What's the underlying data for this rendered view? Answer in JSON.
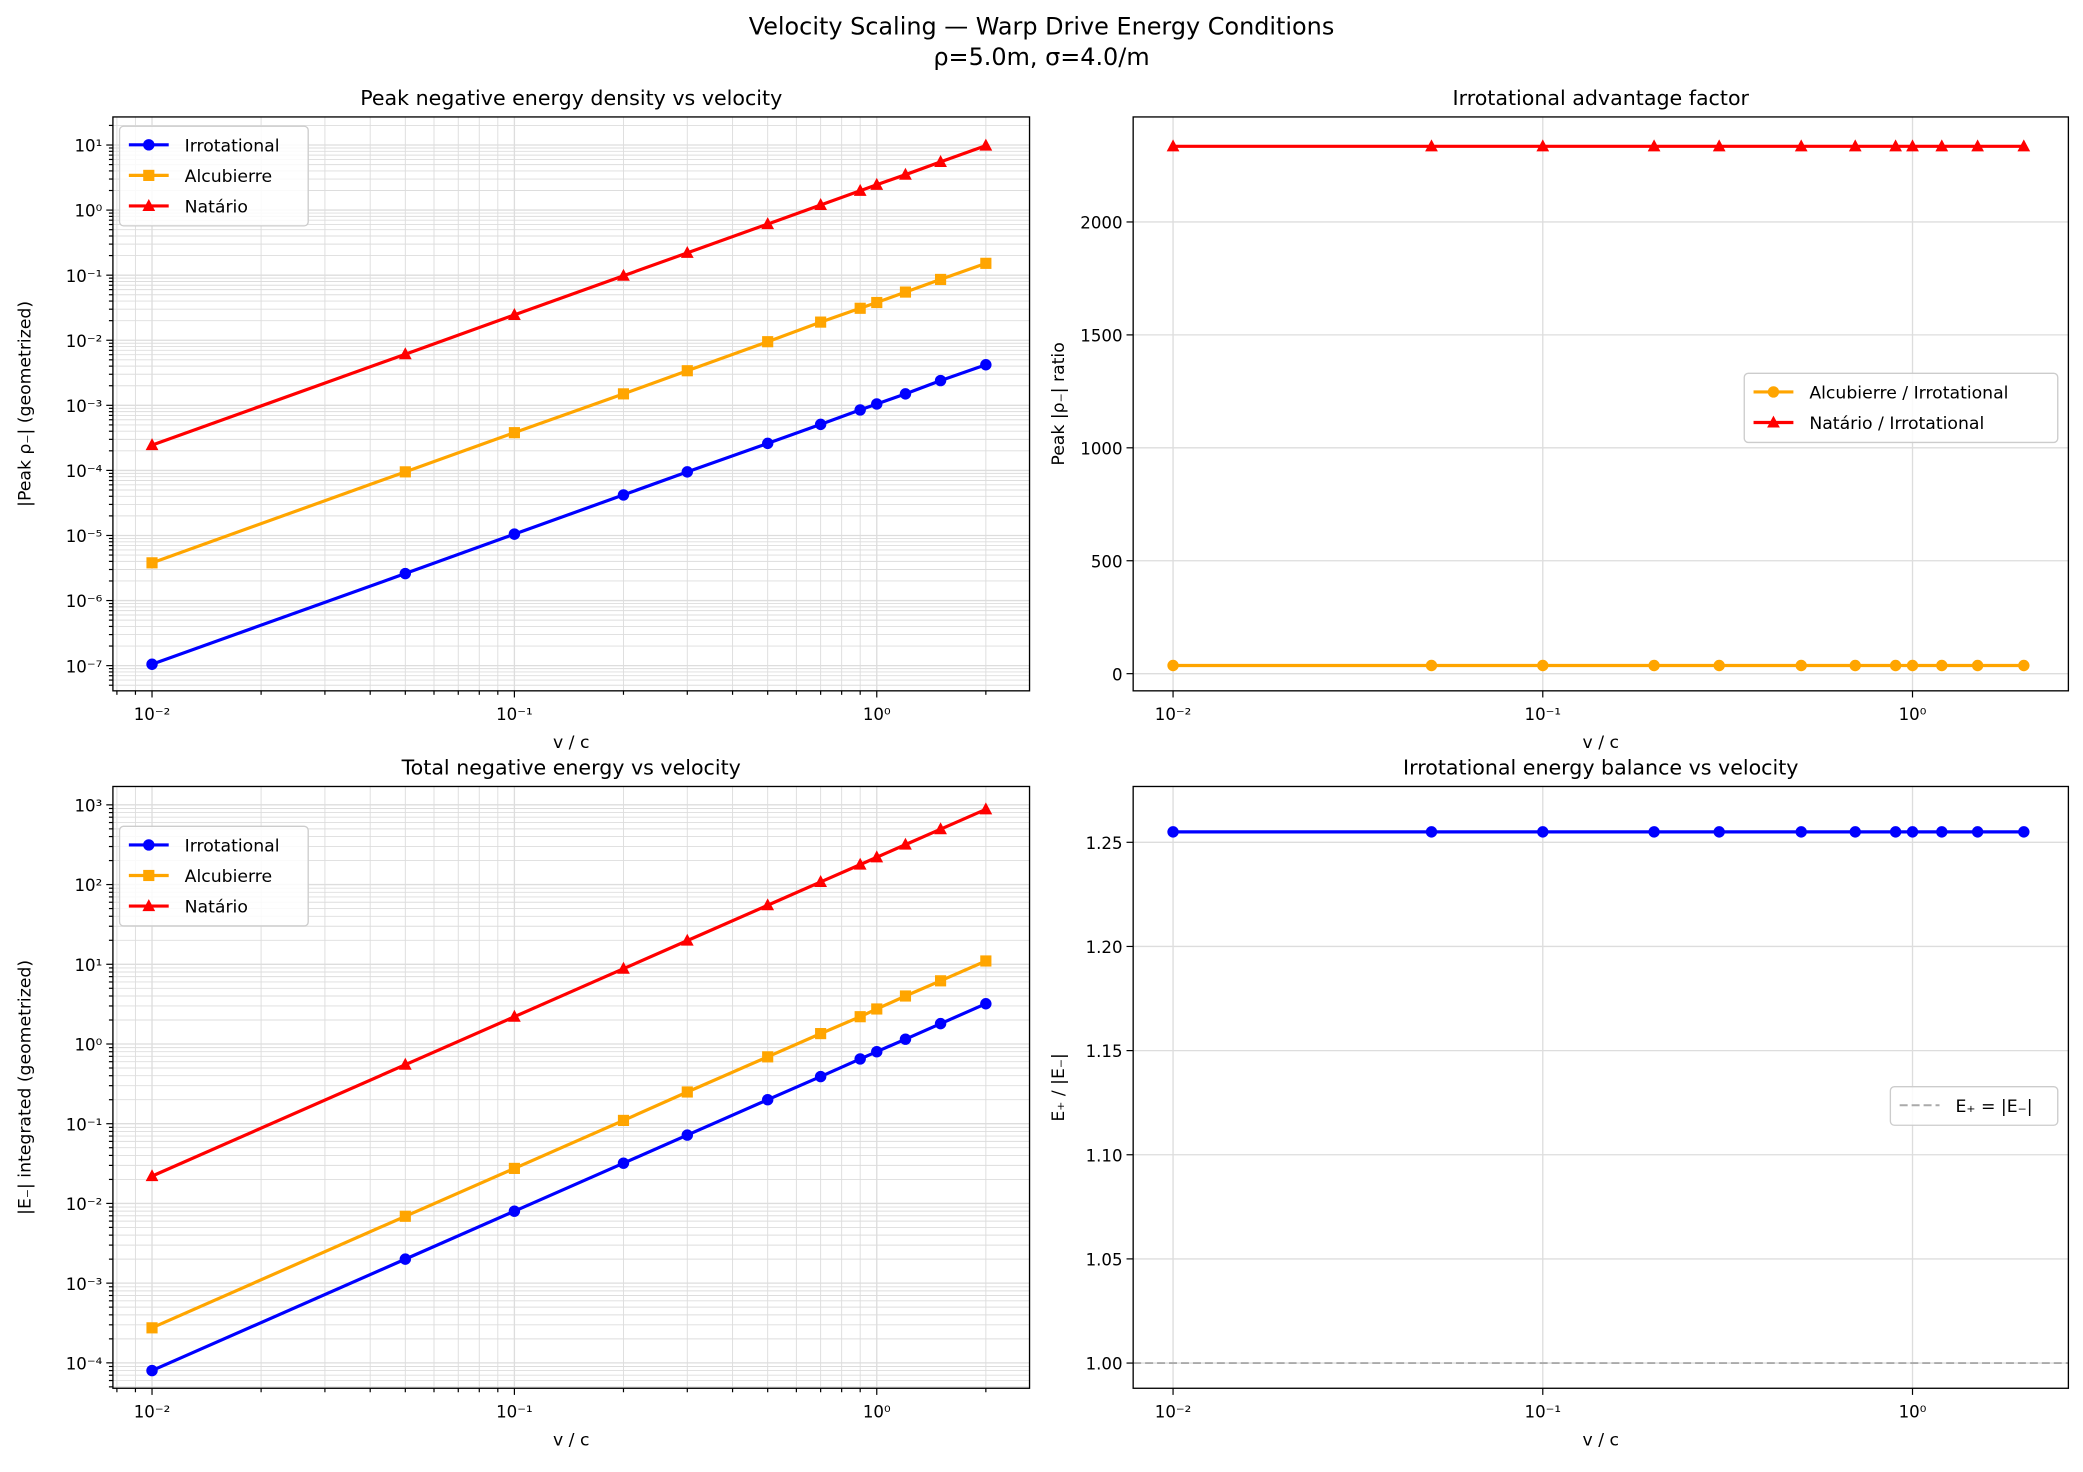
{
  "suptitle": {
    "line1": "Velocity Scaling — Warp Drive Energy Conditions",
    "line2": "ρ=5.0m, σ=4.0/m"
  },
  "colors": {
    "irrotational": "#0000ff",
    "alcubierre": "#ffa500",
    "natario": "#ff0000",
    "reference": "#aaaaaa",
    "grid": "#dddddd"
  },
  "chart_data": [
    {
      "type": "line",
      "title": "Peak negative energy density vs velocity",
      "xlabel": "v / c",
      "ylabel": "|Peak ρ₋| (geometrized)",
      "xscale": "log",
      "yscale": "log",
      "xlim": [
        0.0078,
        2.64
      ],
      "ylim": [
        4.1e-08,
        27
      ],
      "grid": "major+minor",
      "legend": "upper-left",
      "xticks": [
        {
          "v": 0.01,
          "label": "10⁻²"
        },
        {
          "v": 0.1,
          "label": "10⁻¹"
        },
        {
          "v": 1,
          "label": "10⁰"
        }
      ],
      "yticks": [
        {
          "v": 1e-07,
          "label": "10⁻⁷"
        },
        {
          "v": 1e-06,
          "label": "10⁻⁶"
        },
        {
          "v": 1e-05,
          "label": "10⁻⁵"
        },
        {
          "v": 0.0001,
          "label": "10⁻⁴"
        },
        {
          "v": 0.001,
          "label": "10⁻³"
        },
        {
          "v": 0.01,
          "label": "10⁻²"
        },
        {
          "v": 0.1,
          "label": "10⁻¹"
        },
        {
          "v": 1,
          "label": "10⁰"
        },
        {
          "v": 10,
          "label": "10¹"
        }
      ],
      "x": [
        0.01,
        0.05,
        0.1,
        0.2,
        0.3,
        0.5,
        0.7,
        0.9,
        1.0,
        1.2,
        1.5,
        2.0
      ],
      "series": [
        {
          "name": "Irrotational",
          "color": "irrotational",
          "marker": "circle",
          "values": [
            1.05e-07,
            2.6e-06,
            1.05e-05,
            4.2e-05,
            9.5e-05,
            0.00026,
            0.00051,
            0.00085,
            0.00105,
            0.0015,
            0.0024,
            0.0042
          ]
        },
        {
          "name": "Alcubierre",
          "color": "alcubierre",
          "marker": "square",
          "values": [
            3.8e-06,
            9.5e-05,
            0.00038,
            0.0015,
            0.0034,
            0.0095,
            0.019,
            0.031,
            0.038,
            0.055,
            0.086,
            0.152
          ]
        },
        {
          "name": "Natário",
          "color": "natario",
          "marker": "triangle",
          "values": [
            0.000245,
            0.0061,
            0.0245,
            0.098,
            0.22,
            0.61,
            1.2,
            1.98,
            2.45,
            3.5,
            5.5,
            9.8
          ]
        }
      ]
    },
    {
      "type": "line",
      "title": "Irrotational advantage factor",
      "xlabel": "v / c",
      "ylabel": "Peak |ρ₋| ratio",
      "xscale": "log",
      "yscale": "linear",
      "xlim": [
        0.0078,
        2.64
      ],
      "ylim": [
        -76,
        2465
      ],
      "grid": "major",
      "legend": "center-right",
      "xticks": [
        {
          "v": 0.01,
          "label": "10⁻²"
        },
        {
          "v": 0.1,
          "label": "10⁻¹"
        },
        {
          "v": 1,
          "label": "10⁰"
        }
      ],
      "yticks": [
        {
          "v": 0,
          "label": "0"
        },
        {
          "v": 500,
          "label": "500"
        },
        {
          "v": 1000,
          "label": "1000"
        },
        {
          "v": 1500,
          "label": "1500"
        },
        {
          "v": 2000,
          "label": "2000"
        }
      ],
      "x": [
        0.01,
        0.05,
        0.1,
        0.2,
        0.3,
        0.5,
        0.7,
        0.9,
        1.0,
        1.2,
        1.5,
        2.0
      ],
      "series": [
        {
          "name": "Alcubierre / Irrotational",
          "color": "alcubierre",
          "marker": "circle",
          "values": [
            36.2,
            36.2,
            36.2,
            36.2,
            36.2,
            36.2,
            36.2,
            36.2,
            36.2,
            36.2,
            36.2,
            36.2
          ]
        },
        {
          "name": "Natário / Irrotational",
          "color": "natario",
          "marker": "triangle",
          "values": [
            2335,
            2335,
            2335,
            2335,
            2335,
            2335,
            2335,
            2335,
            2335,
            2335,
            2335,
            2335
          ]
        }
      ]
    },
    {
      "type": "line",
      "title": "Total negative energy vs velocity",
      "xlabel": "v / c",
      "ylabel": "|E₋| integrated (geometrized)",
      "xscale": "log",
      "yscale": "log",
      "xlim": [
        0.0078,
        2.64
      ],
      "ylim": [
        4.8e-05,
        1700
      ],
      "grid": "major+minor",
      "legend": "upper-left",
      "xticks": [
        {
          "v": 0.01,
          "label": "10⁻²"
        },
        {
          "v": 0.1,
          "label": "10⁻¹"
        },
        {
          "v": 1,
          "label": "10⁰"
        }
      ],
      "yticks": [
        {
          "v": 0.0001,
          "label": "10⁻⁴"
        },
        {
          "v": 0.001,
          "label": "10⁻³"
        },
        {
          "v": 0.01,
          "label": "10⁻²"
        },
        {
          "v": 0.1,
          "label": "10⁻¹"
        },
        {
          "v": 1,
          "label": "10⁰"
        },
        {
          "v": 10,
          "label": "10¹"
        },
        {
          "v": 100,
          "label": "10²"
        },
        {
          "v": 1000,
          "label": "10³"
        }
      ],
      "x": [
        0.01,
        0.05,
        0.1,
        0.2,
        0.3,
        0.5,
        0.7,
        0.9,
        1.0,
        1.2,
        1.5,
        2.0
      ],
      "series": [
        {
          "name": "Irrotational",
          "color": "irrotational",
          "marker": "circle",
          "values": [
            8e-05,
            0.002,
            0.008,
            0.032,
            0.072,
            0.2,
            0.39,
            0.65,
            0.8,
            1.15,
            1.8,
            3.2
          ]
        },
        {
          "name": "Alcubierre",
          "color": "alcubierre",
          "marker": "square",
          "values": [
            0.000275,
            0.0069,
            0.0275,
            0.11,
            0.25,
            0.69,
            1.35,
            2.2,
            2.75,
            4.0,
            6.2,
            11
          ]
        },
        {
          "name": "Natário",
          "color": "natario",
          "marker": "triangle",
          "values": [
            0.022,
            0.55,
            2.2,
            8.8,
            19.8,
            55,
            108,
            178,
            220,
            317,
            495,
            880
          ]
        }
      ]
    },
    {
      "type": "line",
      "title": "Irrotational energy balance vs velocity",
      "xlabel": "v / c",
      "ylabel": "E₊ / |E₋|",
      "xscale": "log",
      "yscale": "linear",
      "xlim": [
        0.0078,
        2.64
      ],
      "ylim": [
        0.9879,
        1.2768
      ],
      "grid": "major",
      "legend": "center-right",
      "xticks": [
        {
          "v": 0.01,
          "label": "10⁻²"
        },
        {
          "v": 0.1,
          "label": "10⁻¹"
        },
        {
          "v": 1,
          "label": "10⁰"
        }
      ],
      "yticks": [
        {
          "v": 1.0,
          "label": "1.00"
        },
        {
          "v": 1.05,
          "label": "1.05"
        },
        {
          "v": 1.1,
          "label": "1.10"
        },
        {
          "v": 1.15,
          "label": "1.15"
        },
        {
          "v": 1.2,
          "label": "1.20"
        },
        {
          "v": 1.25,
          "label": "1.25"
        }
      ],
      "x": [
        0.01,
        0.05,
        0.1,
        0.2,
        0.3,
        0.5,
        0.7,
        0.9,
        1.0,
        1.2,
        1.5,
        2.0
      ],
      "series": [
        {
          "color": "irrotational",
          "marker": "circle",
          "values": [
            1.255,
            1.255,
            1.255,
            1.255,
            1.255,
            1.255,
            1.255,
            1.255,
            1.255,
            1.255,
            1.255,
            1.255
          ]
        }
      ],
      "hlines": [
        {
          "name": "E₊ = |E₋|",
          "y": 1.0,
          "color": "reference",
          "style": "dashed"
        }
      ]
    }
  ]
}
